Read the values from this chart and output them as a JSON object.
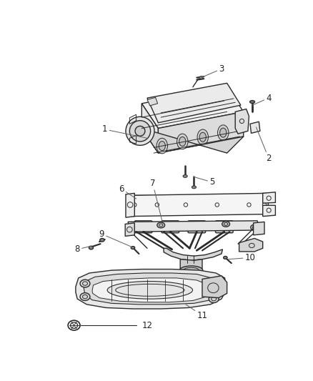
{
  "background_color": "#ffffff",
  "line_color": "#2a2a2a",
  "label_color": "#333333",
  "fig_width": 4.38,
  "fig_height": 5.33,
  "dpi": 100,
  "label_fontsize": 8.5
}
